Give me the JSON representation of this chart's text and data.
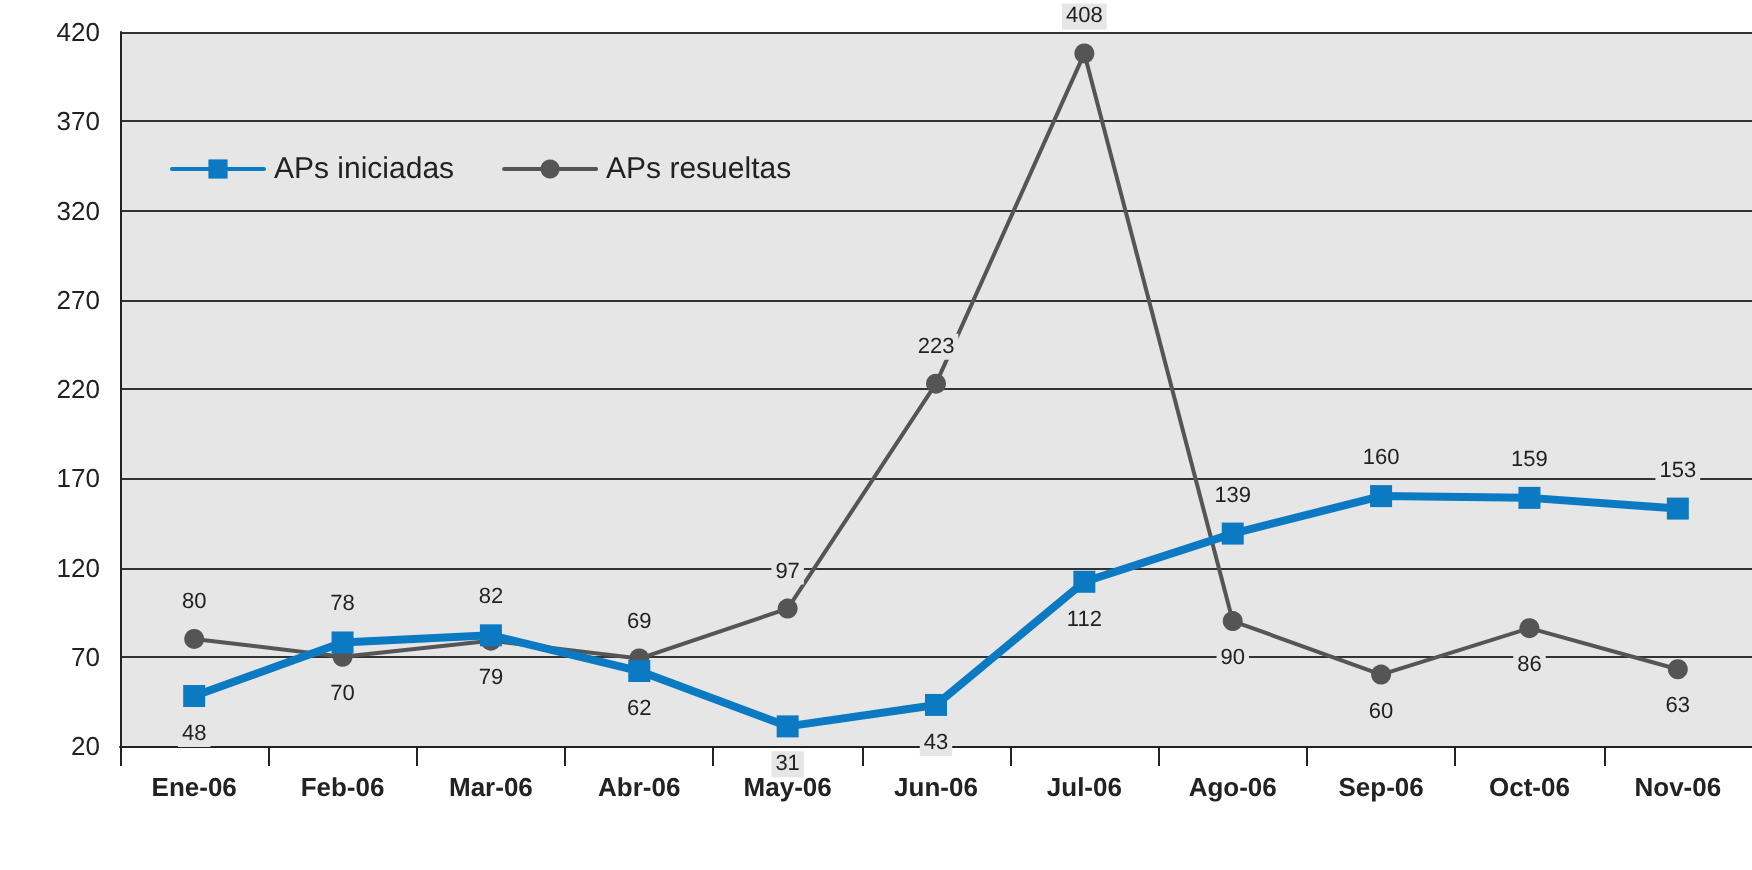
{
  "chart_data": {
    "type": "line",
    "categories": [
      "Ene-06",
      "Feb-06",
      "Mar-06",
      "Abr-06",
      "May-06",
      "Jun-06",
      "Jul-06",
      "Ago-06",
      "Sep-06",
      "Oct-06",
      "Nov-06"
    ],
    "series": [
      {
        "name": "APs iniciadas",
        "color": "#0b7ac3",
        "marker": "square",
        "values": [
          48,
          78,
          82,
          62,
          31,
          43,
          112,
          139,
          160,
          159,
          153
        ]
      },
      {
        "name": "APs resueltas",
        "color": "#555555",
        "marker": "circle",
        "values": [
          80,
          70,
          79,
          69,
          97,
          223,
          408,
          90,
          60,
          86,
          63
        ]
      }
    ],
    "ylim": [
      20,
      420
    ],
    "yticks": [
      20,
      70,
      120,
      170,
      220,
      270,
      320,
      370,
      420
    ],
    "grid": "y",
    "legend": "top left",
    "data_labels": true
  }
}
